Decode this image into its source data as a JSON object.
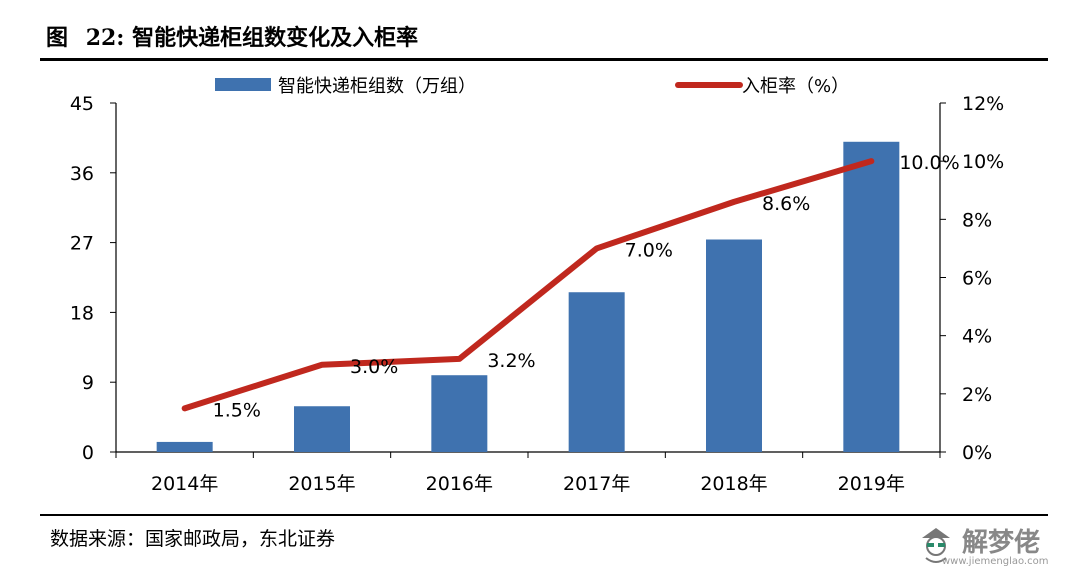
{
  "figure": {
    "label": "图",
    "number": "22:",
    "title": "智能快递柜组数变化及入柜率"
  },
  "source": "数据来源：国家邮政局，东北证券",
  "watermark": {
    "text": "解梦佬",
    "url": "www.jiemenglao.com"
  },
  "colors": {
    "bar": "#3f72af",
    "line": "#c0281e"
  },
  "chart_data": {
    "type": "bar",
    "categories": [
      "2014年",
      "2015年",
      "2016年",
      "2017年",
      "2018年",
      "2019年"
    ],
    "series": [
      {
        "name": "智能快递柜组数（万组）",
        "type": "bar",
        "axis": "left",
        "values": [
          1.3,
          5.9,
          9.9,
          20.6,
          27.4,
          40.0
        ]
      },
      {
        "name": "入柜率（%）",
        "type": "line",
        "axis": "right",
        "values": [
          1.5,
          3.0,
          3.2,
          7.0,
          8.6,
          10.0
        ],
        "labels": [
          "1.5%",
          "3.0%",
          "3.2%",
          "7.0%",
          "8.6%",
          "10.0%"
        ]
      }
    ],
    "y_left": {
      "ylim": [
        0,
        45
      ],
      "ticks": [
        0,
        9,
        18,
        27,
        36,
        45
      ],
      "tick_labels": [
        "0",
        "9",
        "18",
        "27",
        "36",
        "45"
      ]
    },
    "y_right": {
      "ylim": [
        0,
        12
      ],
      "ticks": [
        0,
        2,
        4,
        6,
        8,
        10,
        12
      ],
      "tick_labels": [
        "0%",
        "2%",
        "4%",
        "6%",
        "8%",
        "10%",
        "12%"
      ]
    },
    "legend_position": "top",
    "grid": false
  }
}
